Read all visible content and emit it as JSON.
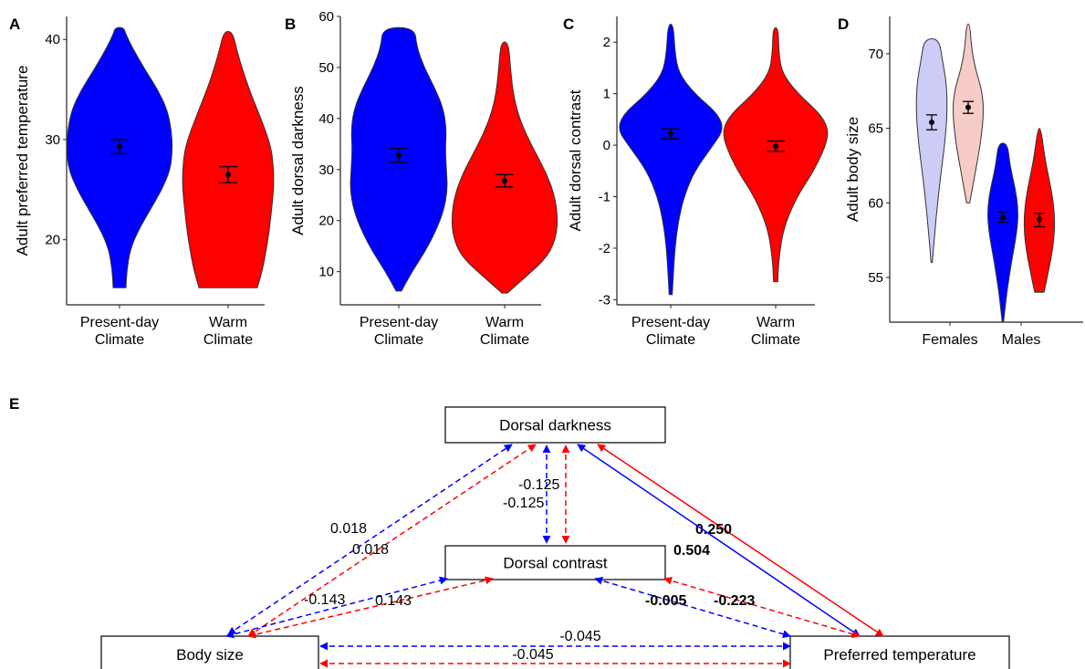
{
  "colors": {
    "present": "#0000ff",
    "warm": "#ff0000",
    "female_present": "#ccccf7",
    "female_warm": "#f7cbc6",
    "axis": "#222222"
  },
  "chart_data": [
    {
      "panel": "A",
      "type": "violin",
      "categories": [
        "Present-day\nClimate",
        "Warm\nClimate"
      ],
      "ylabel": "Adult preferred temperature",
      "yticks": [
        20,
        30,
        40
      ],
      "ylim": [
        13.5,
        42.3
      ],
      "series": [
        {
          "category": "Present-day\nClimate",
          "mean": 29.3,
          "ci": [
            28.6,
            30.0
          ],
          "range": [
            15.2,
            41.2
          ],
          "profile": [
            [
              15.2,
              0.12
            ],
            [
              17,
              0.14
            ],
            [
              19,
              0.2
            ],
            [
              21,
              0.36
            ],
            [
              23,
              0.58
            ],
            [
              25,
              0.8
            ],
            [
              27,
              0.96
            ],
            [
              29,
              1.0
            ],
            [
              31,
              0.98
            ],
            [
              33,
              0.9
            ],
            [
              35,
              0.72
            ],
            [
              37,
              0.48
            ],
            [
              39,
              0.26
            ],
            [
              40.5,
              0.12
            ],
            [
              41.2,
              0.08
            ]
          ]
        },
        {
          "category": "Warm\nClimate",
          "mean": 26.5,
          "ci": [
            25.7,
            27.3
          ],
          "range": [
            15.2,
            40.8
          ],
          "profile": [
            [
              15.2,
              0.55
            ],
            [
              17,
              0.65
            ],
            [
              19,
              0.72
            ],
            [
              21,
              0.78
            ],
            [
              23,
              0.82
            ],
            [
              25,
              0.86
            ],
            [
              27,
              0.86
            ],
            [
              29,
              0.82
            ],
            [
              31,
              0.7
            ],
            [
              33,
              0.55
            ],
            [
              35,
              0.4
            ],
            [
              37,
              0.27
            ],
            [
              39,
              0.16
            ],
            [
              40.8,
              0.08
            ]
          ]
        }
      ]
    },
    {
      "panel": "B",
      "type": "violin",
      "categories": [
        "Present-day\nClimate",
        "Warm\nClimate"
      ],
      "ylabel": "Adult dorsal darkness",
      "yticks": [
        10,
        20,
        30,
        40,
        50,
        60
      ],
      "ylim": [
        3.5,
        60
      ],
      "series": [
        {
          "category": "Present-day\nClimate",
          "mean": 32.8,
          "ci": [
            31.4,
            34.1
          ],
          "range": [
            6.2,
            57.8
          ],
          "profile": [
            [
              6.2,
              0.05
            ],
            [
              10,
              0.25
            ],
            [
              14,
              0.5
            ],
            [
              18,
              0.7
            ],
            [
              22,
              0.85
            ],
            [
              26,
              0.92
            ],
            [
              30,
              0.9
            ],
            [
              34,
              0.88
            ],
            [
              38,
              0.9
            ],
            [
              42,
              0.84
            ],
            [
              46,
              0.68
            ],
            [
              50,
              0.48
            ],
            [
              54,
              0.34
            ],
            [
              57.8,
              0.3
            ]
          ]
        },
        {
          "category": "Warm\nClimate",
          "mean": 27.8,
          "ci": [
            26.6,
            29.0
          ],
          "range": [
            5.8,
            55.0
          ],
          "profile": [
            [
              5.8,
              0.05
            ],
            [
              9,
              0.4
            ],
            [
              13,
              0.82
            ],
            [
              17,
              0.98
            ],
            [
              21,
              1.0
            ],
            [
              25,
              0.94
            ],
            [
              29,
              0.8
            ],
            [
              33,
              0.6
            ],
            [
              37,
              0.4
            ],
            [
              41,
              0.25
            ],
            [
              45,
              0.16
            ],
            [
              50,
              0.11
            ],
            [
              55.0,
              0.07
            ]
          ]
        }
      ]
    },
    {
      "panel": "C",
      "type": "violin",
      "categories": [
        "Present-day\nClimate",
        "Warm\nClimate"
      ],
      "ylabel": "Adult dorsal contrast",
      "yticks": [
        -3,
        -2,
        -1,
        0,
        1,
        2
      ],
      "ylim": [
        -3.1,
        2.5
      ],
      "series": [
        {
          "category": "Present-day\nClimate",
          "mean": 0.22,
          "ci": [
            0.12,
            0.32
          ],
          "range": [
            -2.9,
            2.35
          ],
          "profile": [
            [
              -2.9,
              0.03
            ],
            [
              -2.5,
              0.05
            ],
            [
              -2,
              0.08
            ],
            [
              -1.5,
              0.14
            ],
            [
              -1,
              0.25
            ],
            [
              -0.5,
              0.45
            ],
            [
              0,
              0.8
            ],
            [
              0.3,
              1.0
            ],
            [
              0.6,
              0.9
            ],
            [
              1,
              0.45
            ],
            [
              1.4,
              0.15
            ],
            [
              1.8,
              0.08
            ],
            [
              2.35,
              0.05
            ]
          ]
        },
        {
          "category": "Warm\nClimate",
          "mean": -0.02,
          "ci": [
            -0.12,
            0.08
          ],
          "range": [
            -2.65,
            2.28
          ],
          "profile": [
            [
              -2.65,
              0.04
            ],
            [
              -2.2,
              0.06
            ],
            [
              -1.6,
              0.15
            ],
            [
              -1,
              0.4
            ],
            [
              -0.5,
              0.72
            ],
            [
              0,
              0.95
            ],
            [
              0.3,
              1.0
            ],
            [
              0.6,
              0.85
            ],
            [
              1,
              0.42
            ],
            [
              1.4,
              0.12
            ],
            [
              1.8,
              0.06
            ],
            [
              2.28,
              0.05
            ]
          ]
        }
      ]
    },
    {
      "panel": "D",
      "type": "violin",
      "categories": [
        "Females",
        "Males"
      ],
      "ylabel": "Adult body size",
      "yticks": [
        55,
        60,
        65,
        70
      ],
      "ylim": [
        52,
        72.5
      ],
      "series": [
        {
          "category": "Females",
          "group": "Present-day Climate",
          "mean": 65.4,
          "ci": [
            64.9,
            65.9
          ],
          "range": [
            56.0,
            71.0
          ],
          "profile": [
            [
              56.0,
              0.04
            ],
            [
              58,
              0.2
            ],
            [
              60,
              0.38
            ],
            [
              62,
              0.6
            ],
            [
              64,
              0.85
            ],
            [
              66,
              1.0
            ],
            [
              68,
              0.96
            ],
            [
              69.5,
              0.7
            ],
            [
              71.0,
              0.48
            ]
          ]
        },
        {
          "category": "Females",
          "group": "Warm Climate",
          "mean": 66.4,
          "ci": [
            66.0,
            66.8
          ],
          "range": [
            60.0,
            72.0
          ],
          "profile": [
            [
              60.0,
              0.1
            ],
            [
              62,
              0.45
            ],
            [
              64,
              0.8
            ],
            [
              66,
              1.0
            ],
            [
              67.5,
              0.9
            ],
            [
              69,
              0.45
            ],
            [
              70.5,
              0.2
            ],
            [
              72.0,
              0.1
            ]
          ]
        },
        {
          "category": "Males",
          "group": "Present-day Climate",
          "mean": 59.0,
          "ci": [
            58.7,
            59.4
          ],
          "range": [
            52.0,
            64.0
          ],
          "profile": [
            [
              52.0,
              0.04
            ],
            [
              54,
              0.25
            ],
            [
              56,
              0.55
            ],
            [
              58,
              0.9
            ],
            [
              59.5,
              1.0
            ],
            [
              61,
              0.8
            ],
            [
              62.5,
              0.45
            ],
            [
              64.0,
              0.3
            ]
          ]
        },
        {
          "category": "Males",
          "group": "Warm Climate",
          "mean": 58.9,
          "ci": [
            58.4,
            59.3
          ],
          "range": [
            54.0,
            65.0
          ],
          "profile": [
            [
              54.0,
              0.3
            ],
            [
              55.5,
              0.6
            ],
            [
              57,
              0.88
            ],
            [
              58.5,
              1.0
            ],
            [
              60,
              0.92
            ],
            [
              61.5,
              0.65
            ],
            [
              63,
              0.35
            ],
            [
              65.0,
              0.1
            ]
          ]
        }
      ]
    },
    {
      "panel": "E",
      "type": "path-diagram",
      "nodes": [
        "Dorsal darkness",
        "Dorsal contrast",
        "Body size",
        "Preferred temperature"
      ],
      "edges": [
        {
          "from": "Body size",
          "to": "Dorsal darkness",
          "color": "blue",
          "dashed": true,
          "label": "0.018"
        },
        {
          "from": "Body size",
          "to": "Dorsal darkness",
          "color": "red",
          "dashed": true,
          "label": "0.018"
        },
        {
          "from": "Dorsal darkness",
          "to": "Dorsal contrast",
          "color": "blue",
          "dashed": true,
          "label": "-0.125"
        },
        {
          "from": "Dorsal darkness",
          "to": "Dorsal contrast",
          "color": "red",
          "dashed": true,
          "label": "-0.125"
        },
        {
          "from": "Preferred temperature",
          "to": "Dorsal darkness",
          "color": "red",
          "dashed": false,
          "label": "0.250",
          "bold": true
        },
        {
          "from": "Preferred temperature",
          "to": "Dorsal darkness",
          "color": "blue",
          "dashed": false,
          "label": "0.504",
          "bold": true
        },
        {
          "from": "Body size",
          "to": "Dorsal contrast",
          "color": "blue",
          "dashed": true,
          "label": "-0.143"
        },
        {
          "from": "Body size",
          "to": "Dorsal contrast",
          "color": "red",
          "dashed": true,
          "label": "0.143"
        },
        {
          "from": "Dorsal contrast",
          "to": "Preferred temperature",
          "color": "blue",
          "dashed": true,
          "label": "-0.005",
          "bold": true
        },
        {
          "from": "Dorsal contrast",
          "to": "Preferred temperature",
          "color": "red",
          "dashed": true,
          "label": "-0.223",
          "bold": true
        },
        {
          "from": "Body size",
          "to": "Preferred temperature",
          "color": "blue",
          "dashed": true,
          "label": "-0.045"
        },
        {
          "from": "Body size",
          "to": "Preferred temperature",
          "color": "red",
          "dashed": true,
          "label": "-0.045"
        }
      ]
    }
  ]
}
